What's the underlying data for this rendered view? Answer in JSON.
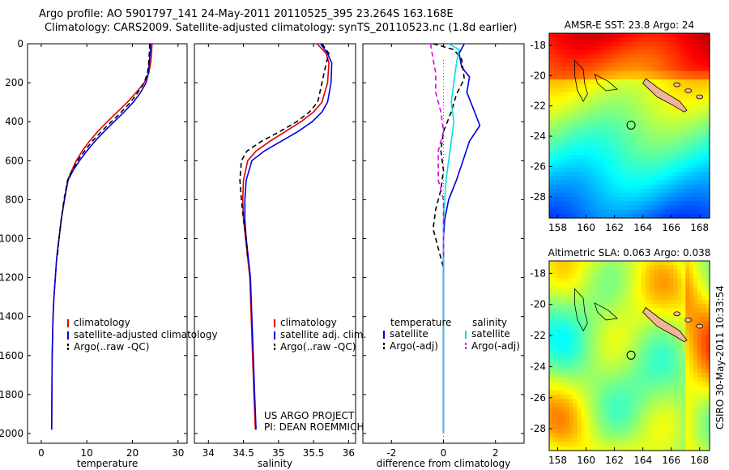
{
  "title_line1": "Argo profile: AO 5901797_141 24-May-2011 20110525_395 23.264S 163.168E",
  "title_line2": "Climatology: CARS2009. Satellite-adjusted climatology: synTS_20110523.nc (1.8d earlier)",
  "side_label": "CSIRO 30-May-2011 10:33:54",
  "project_line1": "US ARGO PROJECT",
  "project_line2": "PI: DEAN ROEMMICH",
  "colors": {
    "climatology": "#e00000",
    "satellite": "#0000e0",
    "argo": "#000000",
    "sat_salinity": "#00e0e0",
    "argo_salinity": "#e000e0",
    "coast_fill": "#f0b49a"
  },
  "chart_data": [
    {
      "type": "line",
      "id": "temperature",
      "xlabel": "temperature",
      "ylabel": "",
      "xlim": [
        -3,
        32
      ],
      "ylim": [
        2050,
        0
      ],
      "xticks": [
        0,
        10,
        20,
        30
      ],
      "yticks": [
        0,
        200,
        400,
        600,
        800,
        1000,
        1200,
        1400,
        1600,
        1800,
        2000
      ],
      "series": [
        {
          "name": "climatology",
          "color": "#e00000",
          "dash": "",
          "x": [
            24.3,
            24.2,
            24.0,
            23.6,
            22.6,
            20.8,
            18.9,
            16.7,
            14.5,
            12.4,
            10.6,
            9.0,
            7.7,
            6.7,
            5.8,
            5.1,
            4.4,
            3.9,
            3.4,
            3.1,
            2.8,
            2.6,
            2.4,
            2.3
          ],
          "y": [
            0,
            50,
            100,
            150,
            200,
            250,
            300,
            350,
            400,
            450,
            500,
            550,
            600,
            650,
            700,
            800,
            900,
            1000,
            1100,
            1200,
            1300,
            1400,
            1600,
            1980
          ]
        },
        {
          "name": "satellite-adjusted climatology",
          "color": "#0000e0",
          "dash": "",
          "x": [
            24.0,
            23.9,
            23.7,
            23.5,
            23.0,
            21.8,
            20.2,
            18.2,
            16.0,
            13.8,
            11.8,
            10.0,
            8.4,
            7.0,
            5.9,
            5.1,
            4.4,
            3.9,
            3.4,
            3.1,
            2.8,
            2.6,
            2.4,
            2.3
          ],
          "y": [
            0,
            50,
            100,
            150,
            200,
            250,
            300,
            350,
            400,
            450,
            500,
            550,
            600,
            650,
            700,
            800,
            900,
            1000,
            1100,
            1200,
            1300,
            1400,
            1600,
            1980
          ]
        },
        {
          "name": "Argo(..raw -QC)",
          "color": "#000000",
          "dash": "6,4",
          "x": [
            23.8,
            23.7,
            23.6,
            23.3,
            22.6,
            21.2,
            19.6,
            17.6,
            15.4,
            13.2,
            11.2,
            9.5,
            8.0,
            6.8,
            5.8,
            5.0,
            4.4,
            3.9,
            3.5
          ],
          "y": [
            0,
            50,
            100,
            150,
            200,
            250,
            300,
            350,
            400,
            450,
            500,
            550,
            600,
            650,
            700,
            800,
            900,
            1000,
            1100
          ]
        }
      ],
      "legend": [
        "climatology",
        "satellite-adjusted climatology",
        "Argo(..raw -QC)"
      ]
    },
    {
      "type": "line",
      "id": "salinity",
      "xlabel": "salinity",
      "ylabel": "",
      "xlim": [
        33.8,
        36.1
      ],
      "ylim": [
        2050,
        0
      ],
      "xticks": [
        34,
        34.5,
        35,
        35.5,
        36
      ],
      "xticklabels": [
        "34",
        "34.5",
        "35",
        "35.5",
        "36"
      ],
      "series": [
        {
          "name": "climatology",
          "color": "#e00000",
          "dash": "",
          "x": [
            35.55,
            35.68,
            35.72,
            35.7,
            35.62,
            35.5,
            35.32,
            35.1,
            34.88,
            34.68,
            34.56,
            34.5,
            34.49,
            34.5,
            34.53,
            34.56,
            34.59,
            34.61,
            34.63,
            34.65,
            34.67
          ],
          "y": [
            0,
            50,
            100,
            200,
            300,
            350,
            400,
            450,
            500,
            550,
            600,
            700,
            800,
            900,
            1000,
            1100,
            1200,
            1400,
            1600,
            1800,
            1980
          ]
        },
        {
          "name": "satellite adj. clim.",
          "color": "#0000e0",
          "dash": "",
          "x": [
            35.6,
            35.7,
            35.76,
            35.75,
            35.7,
            35.62,
            35.48,
            35.28,
            35.04,
            34.8,
            34.62,
            34.54,
            34.52,
            34.52,
            34.54,
            34.57,
            34.6,
            34.62,
            34.64,
            34.66,
            34.68
          ],
          "y": [
            0,
            50,
            100,
            200,
            300,
            350,
            400,
            450,
            500,
            550,
            600,
            700,
            800,
            900,
            1000,
            1100,
            1200,
            1400,
            1600,
            1800,
            1980
          ]
        },
        {
          "name": "Argo(..raw -QC)",
          "color": "#000000",
          "dash": "6,4",
          "x": [
            35.62,
            35.72,
            35.68,
            35.62,
            35.56,
            35.44,
            35.26,
            35.02,
            34.76,
            34.55,
            34.47,
            34.45,
            34.47,
            34.5,
            34.54,
            34.56
          ],
          "y": [
            0,
            50,
            100,
            200,
            300,
            350,
            400,
            450,
            500,
            550,
            600,
            700,
            800,
            900,
            1000,
            1100
          ]
        }
      ],
      "legend": [
        "climatology",
        "satellite adj. clim.",
        "Argo(..raw -QC)"
      ]
    },
    {
      "type": "line",
      "id": "difference",
      "xlabel": "difference from climatology",
      "ylabel": "",
      "xlim": [
        -3.1,
        3.1
      ],
      "ylim": [
        2050,
        0
      ],
      "xticks": [
        -2,
        0,
        2
      ],
      "series": [
        {
          "name": "temperature satellite",
          "color": "#0000e0",
          "dash": "",
          "x": [
            0.8,
            0.6,
            0.7,
            1.0,
            0.9,
            1.2,
            1.4,
            1.0,
            0.7,
            0.5,
            0.2,
            0.05,
            0.0,
            0.0,
            0.0
          ],
          "y": [
            0,
            50,
            120,
            170,
            250,
            350,
            420,
            500,
            620,
            700,
            800,
            900,
            1000,
            1400,
            2000
          ]
        },
        {
          "name": "temperature Argo(-adj)",
          "color": "#000000",
          "dash": "6,4",
          "x": [
            -0.4,
            0.4,
            0.7,
            0.8,
            0.5,
            0.3,
            0.0,
            -0.1,
            0.0,
            -0.1,
            -0.3,
            -0.4,
            -0.2,
            0.0
          ],
          "y": [
            0,
            30,
            80,
            180,
            260,
            350,
            450,
            550,
            650,
            750,
            850,
            950,
            1050,
            1150
          ]
        },
        {
          "name": "salinity satellite",
          "color": "#00e0e0",
          "dash": "",
          "x": [
            0.2,
            0.6,
            0.5,
            0.4,
            0.3,
            0.4,
            0.3,
            0.2,
            0.1,
            0.05,
            0.0,
            0.0,
            0.0
          ],
          "y": [
            0,
            30,
            100,
            200,
            300,
            400,
            500,
            600,
            700,
            800,
            900,
            1400,
            2000
          ]
        },
        {
          "name": "salinity Argo(-adj)",
          "color": "#e000e0",
          "dash": "6,4",
          "x": [
            -0.5,
            -0.4,
            -0.3,
            -0.3,
            -0.1,
            0.0,
            -0.2,
            -0.2,
            0.0,
            0.0,
            0.0
          ],
          "y": [
            0,
            80,
            150,
            250,
            350,
            450,
            550,
            700,
            800,
            950,
            1100
          ]
        }
      ],
      "legend_headers": [
        "temperature",
        "salinity"
      ],
      "legend": [
        "satellite",
        "Argo(-adj)",
        "satellite",
        "Argo(-adj)"
      ]
    },
    {
      "type": "heatmap",
      "id": "sst_map",
      "title": "AMSR-E SST: 23.8 Argo: 24",
      "xlim": [
        157.4,
        168.7
      ],
      "ylim": [
        -29.4,
        -17.2
      ],
      "xticks": [
        158,
        160,
        162,
        164,
        166,
        168
      ],
      "yticks": [
        -18,
        -20,
        -22,
        -24,
        -26,
        -28
      ],
      "float_position": [
        163.168,
        -23.264
      ]
    },
    {
      "type": "heatmap",
      "id": "sla_map",
      "title": "Altimetric SLA: 0.063 Argo: 0.038",
      "xlim": [
        157.4,
        168.7
      ],
      "ylim": [
        -29.4,
        -17.2
      ],
      "xticks": [
        158,
        160,
        162,
        164,
        166,
        168
      ],
      "yticks": [
        -18,
        -20,
        -22,
        -24,
        -26,
        -28
      ],
      "float_position": [
        163.168,
        -23.264
      ]
    }
  ]
}
